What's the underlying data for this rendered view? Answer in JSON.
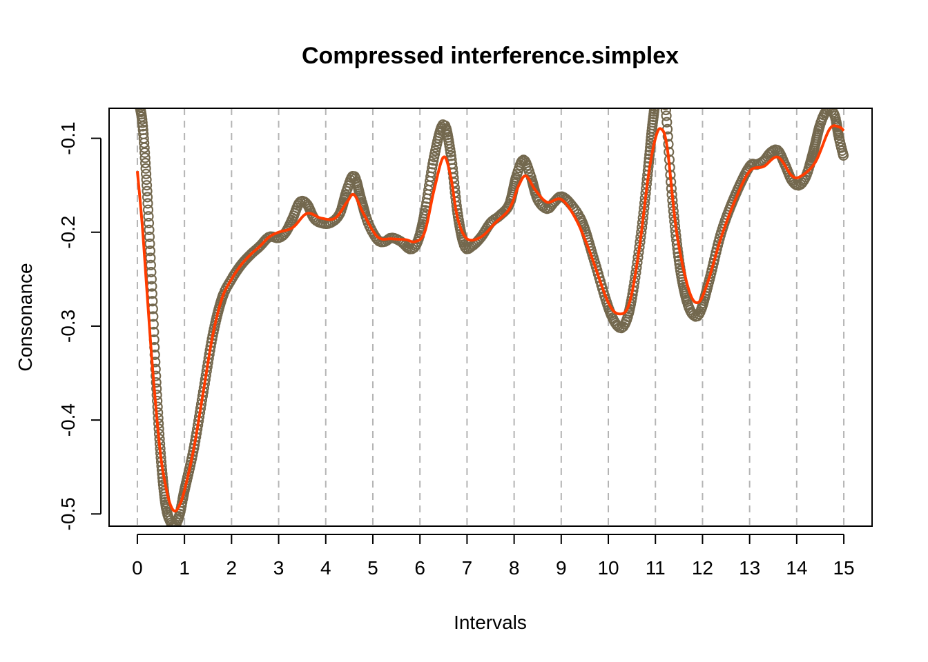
{
  "chart_data": {
    "type": "scatter",
    "title": "Compressed interference.simplex",
    "xlabel": "Intervals",
    "ylabel": "Consonance",
    "xlim": [
      -0.6,
      15.6
    ],
    "ylim": [
      -0.513,
      -0.068
    ],
    "x_ticks": [
      0,
      1,
      2,
      3,
      4,
      5,
      6,
      7,
      8,
      9,
      10,
      11,
      12,
      13,
      14,
      15
    ],
    "y_ticks": [
      -0.5,
      -0.4,
      -0.3,
      -0.2,
      -0.1
    ],
    "x_tick_labels": [
      "0",
      "1",
      "2",
      "3",
      "4",
      "5",
      "6",
      "7",
      "8",
      "9",
      "10",
      "11",
      "12",
      "13",
      "14",
      "15"
    ],
    "y_tick_labels": [
      "-0.5",
      "-0.4",
      "-0.3",
      "-0.2",
      "-0.1"
    ],
    "vertical_gridlines": [
      0,
      1,
      2,
      3,
      4,
      5,
      6,
      7,
      8,
      9,
      10,
      11,
      12,
      13,
      14,
      15
    ],
    "grid": "vertical dashed at integer intervals",
    "colors": {
      "points": "#73684e",
      "smooth_line": "#ff3c00",
      "grid": "#b4b4b4",
      "axes": "#000000"
    },
    "series": [
      {
        "kind": "open-circles",
        "x": [
          0.0,
          0.1,
          0.2,
          0.3,
          0.4,
          0.5,
          0.6,
          0.7,
          0.8,
          0.9,
          1.0,
          1.2,
          1.4,
          1.6,
          1.8,
          2.0,
          2.2,
          2.4,
          2.6,
          2.8,
          3.0,
          3.15,
          3.3,
          3.45,
          3.6,
          3.75,
          3.9,
          4.1,
          4.3,
          4.45,
          4.6,
          4.75,
          4.9,
          5.1,
          5.25,
          5.4,
          5.6,
          5.8,
          5.95,
          6.1,
          6.3,
          6.5,
          6.65,
          6.8,
          6.95,
          7.1,
          7.3,
          7.5,
          7.7,
          7.9,
          8.05,
          8.2,
          8.35,
          8.5,
          8.7,
          8.85,
          9.0,
          9.2,
          9.45,
          9.7,
          10.0,
          10.2,
          10.35,
          10.5,
          10.7,
          10.85,
          10.95,
          11.05,
          11.2,
          11.35,
          11.5,
          11.65,
          11.8,
          11.95,
          12.15,
          12.4,
          12.7,
          13.0,
          13.15,
          13.3,
          13.45,
          13.6,
          13.75,
          13.9,
          14.05,
          14.2,
          14.35,
          14.5,
          14.65,
          14.8,
          14.9,
          15.0
        ],
        "y": [
          -0.06,
          -0.08,
          -0.15,
          -0.25,
          -0.36,
          -0.44,
          -0.49,
          -0.508,
          -0.512,
          -0.5,
          -0.475,
          -0.43,
          -0.37,
          -0.31,
          -0.27,
          -0.25,
          -0.235,
          -0.224,
          -0.215,
          -0.205,
          -0.206,
          -0.2,
          -0.185,
          -0.168,
          -0.17,
          -0.185,
          -0.19,
          -0.19,
          -0.18,
          -0.155,
          -0.14,
          -0.165,
          -0.19,
          -0.208,
          -0.21,
          -0.206,
          -0.21,
          -0.218,
          -0.21,
          -0.18,
          -0.12,
          -0.085,
          -0.115,
          -0.18,
          -0.215,
          -0.215,
          -0.205,
          -0.19,
          -0.182,
          -0.17,
          -0.14,
          -0.123,
          -0.14,
          -0.165,
          -0.175,
          -0.168,
          -0.162,
          -0.17,
          -0.19,
          -0.23,
          -0.28,
          -0.3,
          -0.298,
          -0.27,
          -0.2,
          -0.13,
          -0.08,
          -0.05,
          -0.06,
          -0.16,
          -0.23,
          -0.27,
          -0.288,
          -0.285,
          -0.25,
          -0.2,
          -0.16,
          -0.13,
          -0.128,
          -0.124,
          -0.115,
          -0.113,
          -0.128,
          -0.145,
          -0.15,
          -0.14,
          -0.115,
          -0.085,
          -0.07,
          -0.075,
          -0.1,
          -0.12
        ]
      },
      {
        "kind": "line",
        "x": [
          0.0,
          0.1,
          0.2,
          0.3,
          0.4,
          0.5,
          0.6,
          0.7,
          0.8,
          0.9,
          1.0,
          1.2,
          1.4,
          1.6,
          1.8,
          2.0,
          2.2,
          2.4,
          2.6,
          2.8,
          3.0,
          3.3,
          3.6,
          3.9,
          4.2,
          4.45,
          4.6,
          4.8,
          5.1,
          5.4,
          5.7,
          5.9,
          6.1,
          6.3,
          6.5,
          6.65,
          6.8,
          7.0,
          7.3,
          7.6,
          7.9,
          8.1,
          8.25,
          8.45,
          8.7,
          9.0,
          9.3,
          9.6,
          10.0,
          10.25,
          10.45,
          10.65,
          10.85,
          11.0,
          11.12,
          11.25,
          11.45,
          11.7,
          11.9,
          12.1,
          12.4,
          12.7,
          13.0,
          13.3,
          13.6,
          13.9,
          14.1,
          14.4,
          14.7,
          14.9,
          15.0
        ],
        "y": [
          -0.135,
          -0.19,
          -0.26,
          -0.33,
          -0.39,
          -0.44,
          -0.47,
          -0.49,
          -0.497,
          -0.49,
          -0.475,
          -0.43,
          -0.37,
          -0.31,
          -0.27,
          -0.25,
          -0.235,
          -0.224,
          -0.215,
          -0.205,
          -0.2,
          -0.195,
          -0.18,
          -0.185,
          -0.185,
          -0.168,
          -0.16,
          -0.18,
          -0.205,
          -0.207,
          -0.208,
          -0.21,
          -0.2,
          -0.155,
          -0.12,
          -0.14,
          -0.185,
          -0.207,
          -0.205,
          -0.19,
          -0.175,
          -0.15,
          -0.14,
          -0.155,
          -0.168,
          -0.165,
          -0.185,
          -0.22,
          -0.275,
          -0.287,
          -0.275,
          -0.22,
          -0.14,
          -0.1,
          -0.09,
          -0.11,
          -0.2,
          -0.26,
          -0.275,
          -0.255,
          -0.205,
          -0.165,
          -0.135,
          -0.13,
          -0.12,
          -0.14,
          -0.14,
          -0.125,
          -0.09,
          -0.088,
          -0.092
        ]
      }
    ]
  }
}
